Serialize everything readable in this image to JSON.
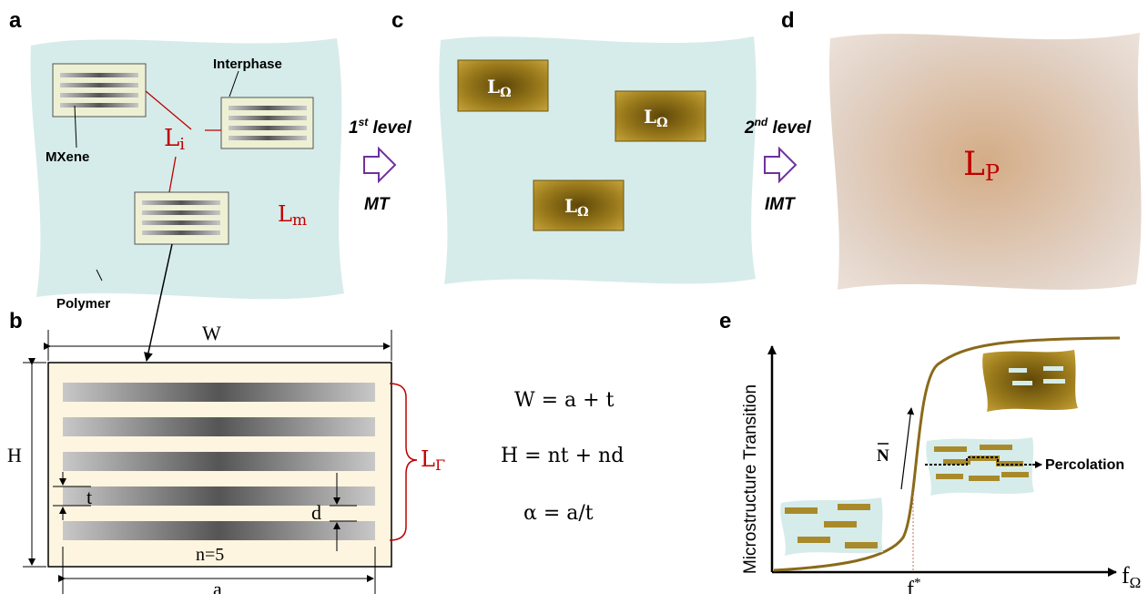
{
  "panels": {
    "a": {
      "letter": "a",
      "labels": {
        "interphase": "Interphase",
        "mxene": "MXene",
        "polymer": "Polymer",
        "li_main": "L",
        "li_sub": "i",
        "lm_main": "L",
        "lm_sub": "m"
      }
    },
    "b": {
      "letter": "b",
      "labels": {
        "W": "W",
        "H": "H",
        "t": "t",
        "d": "d",
        "n": "n=5",
        "a": "a",
        "lgamma_main": "L",
        "lgamma_sub": "Γ"
      },
      "layers": 5
    },
    "c": {
      "letter": "c",
      "lomega_main": "L",
      "lomega_sub": "Ω"
    },
    "d": {
      "letter": "d",
      "lp_main": "L",
      "lp_sub": "P"
    },
    "e": {
      "letter": "e",
      "ylabel": "Microstructure Transition",
      "xlabel_main": "f",
      "xlabel_sub": "Ω",
      "fstar_main": "f",
      "fstar_sup": "*",
      "nbar": "N",
      "percolation": "Percolation"
    }
  },
  "transitions": {
    "first": {
      "level_num": "1",
      "level_sup": "st",
      "level_word": " level",
      "method": "MT"
    },
    "second": {
      "level_num": "2",
      "level_sup": "nd",
      "level_word": " level",
      "method": "IMT"
    }
  },
  "equations": {
    "eq1": "W = a + t",
    "eq2": "H = nt + nd",
    "eq3": "α = a/t"
  },
  "colors": {
    "polymer_fill": "#d6ecea",
    "interphase_fill": "#eef0d4",
    "gold": "#a98a2a",
    "gold_dark": "#6b5410",
    "red_label": "#c00000",
    "arrow_purple": "#7030a0",
    "cream": "#fdf5df",
    "effective_medium": "#d8c3b4",
    "curve": "#8a6a1a"
  }
}
